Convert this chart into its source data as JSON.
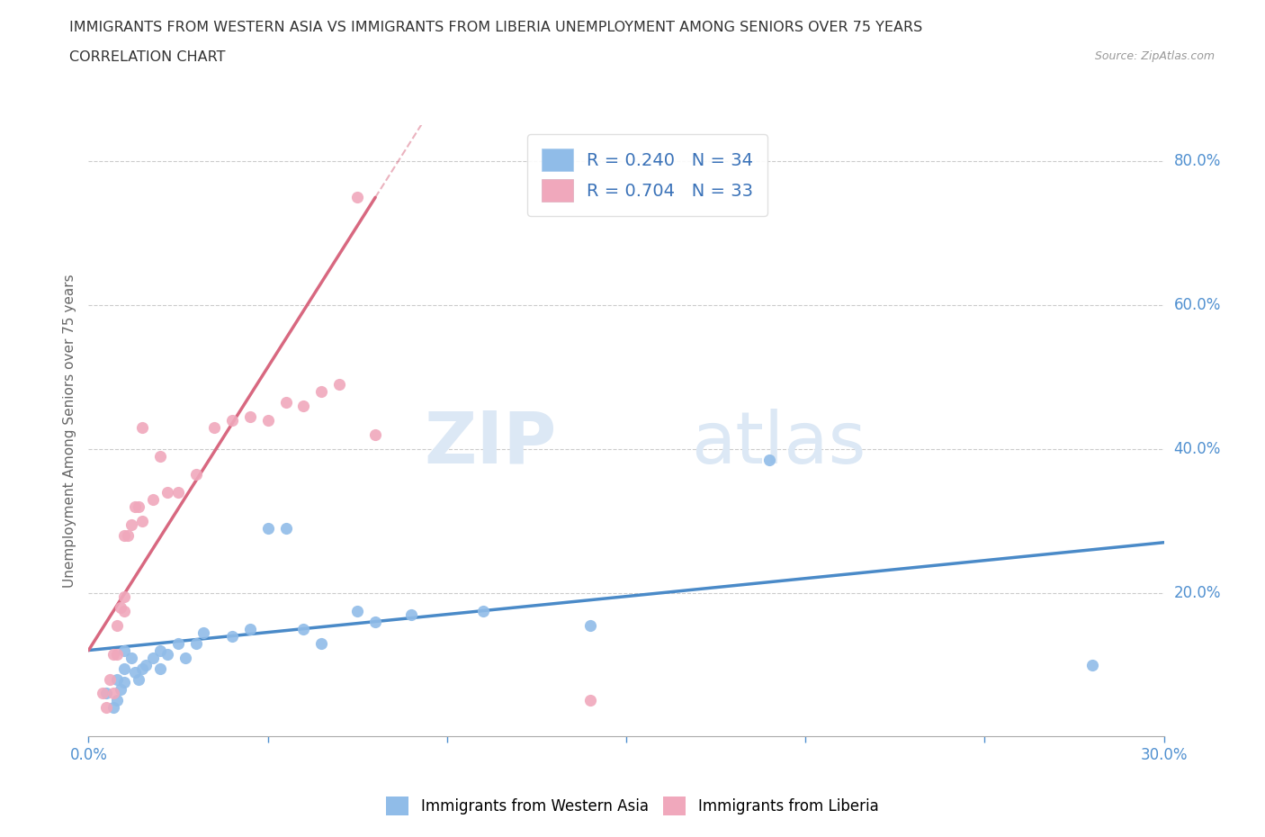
{
  "title_line1": "IMMIGRANTS FROM WESTERN ASIA VS IMMIGRANTS FROM LIBERIA UNEMPLOYMENT AMONG SENIORS OVER 75 YEARS",
  "title_line2": "CORRELATION CHART",
  "source": "Source: ZipAtlas.com",
  "xlabel": "",
  "ylabel": "Unemployment Among Seniors over 75 years",
  "xlim": [
    0.0,
    0.3
  ],
  "ylim": [
    0.0,
    0.85
  ],
  "xticks": [
    0.0,
    0.05,
    0.1,
    0.15,
    0.2,
    0.25,
    0.3
  ],
  "xtick_labels": [
    "0.0%",
    "",
    "",
    "",
    "",
    "",
    "30.0%"
  ],
  "yticks_right": [
    0.2,
    0.4,
    0.6,
    0.8
  ],
  "ytick_right_labels": [
    "20.0%",
    "40.0%",
    "60.0%",
    "80.0%"
  ],
  "legend_entries": [
    {
      "label": "Immigrants from Western Asia",
      "color": "#a8c8f0"
    },
    {
      "label": "Immigrants from Liberia",
      "color": "#f0b8c8"
    }
  ],
  "R_western_asia": 0.24,
  "N_western_asia": 34,
  "R_liberia": 0.704,
  "N_liberia": 33,
  "western_asia_color": "#90bce8",
  "liberia_color": "#f0a8bc",
  "trendline_western_asia_color": "#4a8ac8",
  "trendline_liberia_color": "#d86880",
  "watermark_zip": "ZIP",
  "watermark_atlas": "atlas",
  "background_color": "#ffffff",
  "western_asia_x": [
    0.005,
    0.007,
    0.008,
    0.008,
    0.009,
    0.01,
    0.01,
    0.01,
    0.012,
    0.013,
    0.014,
    0.015,
    0.016,
    0.018,
    0.02,
    0.02,
    0.022,
    0.025,
    0.027,
    0.03,
    0.032,
    0.04,
    0.045,
    0.05,
    0.055,
    0.06,
    0.065,
    0.075,
    0.08,
    0.09,
    0.11,
    0.14,
    0.19,
    0.28
  ],
  "western_asia_y": [
    0.06,
    0.04,
    0.08,
    0.05,
    0.065,
    0.12,
    0.095,
    0.075,
    0.11,
    0.09,
    0.08,
    0.095,
    0.1,
    0.11,
    0.12,
    0.095,
    0.115,
    0.13,
    0.11,
    0.13,
    0.145,
    0.14,
    0.15,
    0.29,
    0.29,
    0.15,
    0.13,
    0.175,
    0.16,
    0.17,
    0.175,
    0.155,
    0.385,
    0.1
  ],
  "liberia_x": [
    0.004,
    0.005,
    0.006,
    0.007,
    0.007,
    0.008,
    0.008,
    0.009,
    0.01,
    0.01,
    0.01,
    0.011,
    0.012,
    0.013,
    0.014,
    0.015,
    0.015,
    0.018,
    0.02,
    0.022,
    0.025,
    0.03,
    0.035,
    0.04,
    0.045,
    0.05,
    0.055,
    0.06,
    0.065,
    0.07,
    0.075,
    0.08,
    0.14
  ],
  "liberia_y": [
    0.06,
    0.04,
    0.08,
    0.06,
    0.115,
    0.115,
    0.155,
    0.18,
    0.175,
    0.195,
    0.28,
    0.28,
    0.295,
    0.32,
    0.32,
    0.3,
    0.43,
    0.33,
    0.39,
    0.34,
    0.34,
    0.365,
    0.43,
    0.44,
    0.445,
    0.44,
    0.465,
    0.46,
    0.48,
    0.49,
    0.75,
    0.42,
    0.05
  ],
  "trendline_wa_x0": 0.0,
  "trendline_wa_x1": 0.3,
  "trendline_wa_y0": 0.12,
  "trendline_wa_y1": 0.27,
  "trendline_lib_x0": 0.0,
  "trendline_lib_x1": 0.08,
  "trendline_lib_y0": 0.12,
  "trendline_lib_y1": 0.75
}
